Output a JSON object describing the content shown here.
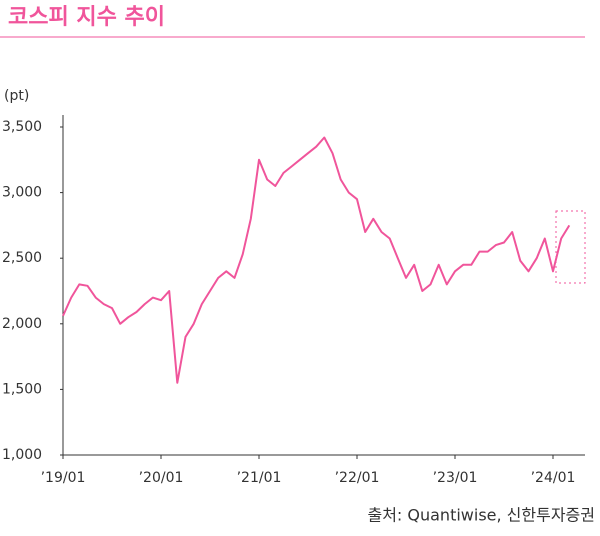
{
  "chart_data": {
    "type": "line",
    "title": "코스피 지수 추이",
    "y_label": "(pt)",
    "source": "출처: Quantiwise, 신한투자증권",
    "x": [
      "2019-01",
      "2019-02",
      "2019-03",
      "2019-04",
      "2019-05",
      "2019-06",
      "2019-07",
      "2019-08",
      "2019-09",
      "2019-10",
      "2019-11",
      "2019-12",
      "2020-01",
      "2020-02",
      "2020-03",
      "2020-04",
      "2020-05",
      "2020-06",
      "2020-07",
      "2020-08",
      "2020-09",
      "2020-10",
      "2020-11",
      "2020-12",
      "2021-01",
      "2021-02",
      "2021-03",
      "2021-04",
      "2021-05",
      "2021-06",
      "2021-07",
      "2021-08",
      "2021-09",
      "2021-10",
      "2021-11",
      "2021-12",
      "2022-01",
      "2022-02",
      "2022-03",
      "2022-04",
      "2022-05",
      "2022-06",
      "2022-07",
      "2022-08",
      "2022-09",
      "2022-10",
      "2022-11",
      "2022-12",
      "2023-01",
      "2023-02",
      "2023-03",
      "2023-04",
      "2023-05",
      "2023-06",
      "2023-07",
      "2023-08",
      "2023-09",
      "2023-10",
      "2023-11",
      "2023-12",
      "2024-01",
      "2024-02",
      "2024-03"
    ],
    "series": [
      {
        "name": "코스피",
        "color": "#f0559b",
        "values": [
          2060,
          2200,
          2300,
          2290,
          2200,
          2150,
          2120,
          2000,
          2050,
          2090,
          2150,
          2200,
          2180,
          2250,
          1550,
          1900,
          2000,
          2150,
          2250,
          2350,
          2400,
          2350,
          2530,
          2800,
          3250,
          3100,
          3050,
          3150,
          3200,
          3250,
          3300,
          3350,
          3420,
          3300,
          3100,
          3000,
          2950,
          2700,
          2800,
          2700,
          2650,
          2500,
          2350,
          2450,
          2250,
          2300,
          2450,
          2300,
          2400,
          2450,
          2450,
          2550,
          2550,
          2600,
          2620,
          2700,
          2480,
          2400,
          2500,
          2650,
          2400,
          2650,
          2750
        ]
      }
    ],
    "ylim": [
      1000,
      3500
    ],
    "yticks": [
      {
        "value": 1000,
        "label": "1,000"
      },
      {
        "value": 1500,
        "label": "1,500"
      },
      {
        "value": 2000,
        "label": "2,000"
      },
      {
        "value": 2500,
        "label": "2,500"
      },
      {
        "value": 3000,
        "label": "3,000"
      },
      {
        "value": 3500,
        "label": "3,500"
      }
    ],
    "xticks": [
      {
        "value": "2019-01",
        "label": "’19/01"
      },
      {
        "value": "2020-01",
        "label": "’20/01"
      },
      {
        "value": "2021-01",
        "label": "’21/01"
      },
      {
        "value": "2022-01",
        "label": "’22/01"
      },
      {
        "value": "2023-01",
        "label": "’23/01"
      },
      {
        "value": "2024-01",
        "label": "’24/01"
      }
    ]
  }
}
